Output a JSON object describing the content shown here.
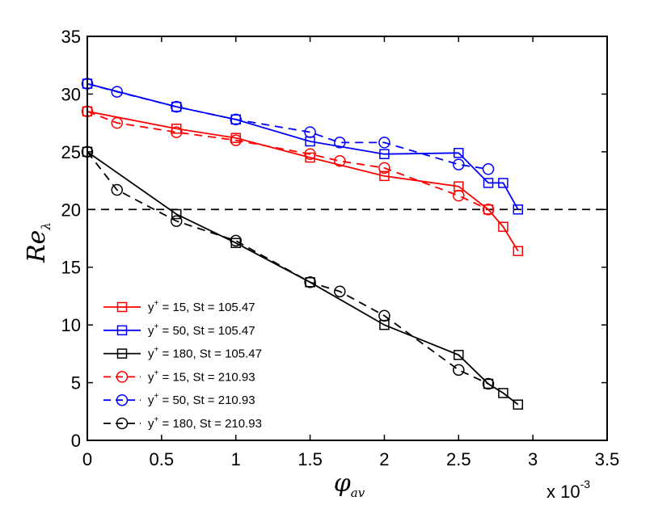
{
  "chart_data": {
    "type": "line",
    "xlabel": {
      "base": "φ",
      "sub": "av"
    },
    "ylabel": {
      "base": "Re",
      "sub": "λ"
    },
    "x_multiplier": {
      "prefix": "x 10",
      "exponent": "-3"
    },
    "xlim": [
      0,
      3.5
    ],
    "ylim": [
      0,
      35
    ],
    "xticks": [
      0,
      0.5,
      1,
      1.5,
      2,
      2.5,
      3,
      3.5
    ],
    "xtick_labels": [
      "0",
      "0.5",
      "1",
      "1.5",
      "2",
      "2.5",
      "3",
      "3.5"
    ],
    "yticks": [
      0,
      5,
      10,
      15,
      20,
      25,
      30,
      35
    ],
    "ytick_labels": [
      "0",
      "5",
      "10",
      "15",
      "20",
      "25",
      "30",
      "35"
    ],
    "reference_line": {
      "y": 20,
      "style": "dashed",
      "color": "#000000"
    },
    "legend_position": "bottom-left",
    "series": [
      {
        "label_prefix": "y",
        "label_sup": "+",
        "label_rest": " = 15, St = 105.47",
        "color": "#ff0000",
        "dash": "solid",
        "marker": "square",
        "x": [
          0,
          0.6,
          1,
          1.5,
          2,
          2.5,
          2.7,
          2.8,
          2.9
        ],
        "y": [
          28.5,
          27.0,
          26.2,
          24.5,
          22.9,
          22.0,
          20.0,
          18.5,
          16.4
        ]
      },
      {
        "label_prefix": "y",
        "label_sup": "+",
        "label_rest": " = 50, St = 105.47",
        "color": "#0000ff",
        "dash": "solid",
        "marker": "square",
        "x": [
          0,
          0.6,
          1,
          1.5,
          2,
          2.5,
          2.7,
          2.8,
          2.9
        ],
        "y": [
          30.9,
          28.9,
          27.8,
          25.9,
          24.8,
          24.9,
          22.3,
          22.3,
          20.0
        ]
      },
      {
        "label_prefix": "y",
        "label_sup": "+",
        "label_rest": " = 180, St = 105.47",
        "color": "#000000",
        "dash": "solid",
        "marker": "square",
        "x": [
          0,
          0.6,
          1,
          1.5,
          2,
          2.5,
          2.7,
          2.8,
          2.9
        ],
        "y": [
          25.0,
          19.6,
          17.1,
          13.7,
          10.0,
          7.4,
          4.9,
          4.1,
          3.1
        ]
      },
      {
        "label_prefix": "y",
        "label_sup": "+",
        "label_rest": " = 15, St = 210.93",
        "color": "#ff0000",
        "dash": "dashed",
        "marker": "circle",
        "x": [
          0,
          0.2,
          0.6,
          1,
          1.5,
          1.7,
          2,
          2.5,
          2.7
        ],
        "y": [
          28.5,
          27.5,
          26.7,
          26.0,
          24.8,
          24.2,
          23.6,
          21.2,
          20.0
        ]
      },
      {
        "label_prefix": "y",
        "label_sup": "+",
        "label_rest": " = 50, St = 210.93",
        "color": "#0000ff",
        "dash": "dashed",
        "marker": "circle",
        "x": [
          0,
          0.2,
          0.6,
          1,
          1.5,
          1.7,
          2,
          2.5,
          2.7
        ],
        "y": [
          30.9,
          30.2,
          28.9,
          27.8,
          26.7,
          25.8,
          25.8,
          23.9,
          23.5
        ]
      },
      {
        "label_prefix": "y",
        "label_sup": "+",
        "label_rest": " = 180, St = 210.93",
        "color": "#000000",
        "dash": "dashed",
        "marker": "circle",
        "x": [
          0,
          0.2,
          0.6,
          1,
          1.5,
          1.7,
          2,
          2.5,
          2.7
        ],
        "y": [
          25.0,
          21.7,
          19.0,
          17.3,
          13.7,
          12.9,
          10.8,
          6.1,
          4.9
        ]
      }
    ]
  }
}
